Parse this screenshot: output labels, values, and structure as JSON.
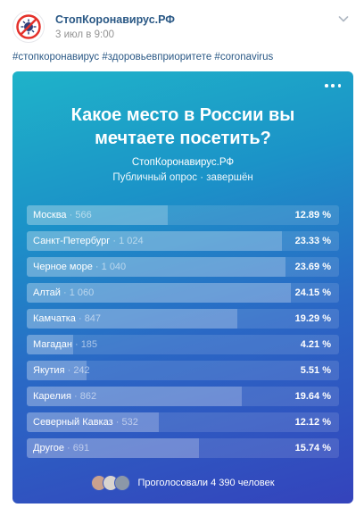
{
  "post": {
    "author_name": "СтопКоронавирус.РФ",
    "date": "3 июл в 9:00",
    "hashtags": "#стопкоронавирус #здоровьевприоритете #coronavirus"
  },
  "poll": {
    "question": "Какое место в России вы мечтаете посетить?",
    "author": "СтопКоронавирус.РФ",
    "meta": "Публичный опрос · завершён",
    "options": [
      {
        "label": "Москва",
        "count": "566",
        "percent": "12.89 %",
        "share": 0.1289
      },
      {
        "label": "Санкт-Петербург",
        "count": "1 024",
        "percent": "23.33 %",
        "share": 0.2333
      },
      {
        "label": "Черное море",
        "count": "1 040",
        "percent": "23.69 %",
        "share": 0.2369
      },
      {
        "label": "Алтай",
        "count": "1 060",
        "percent": "24.15 %",
        "share": 0.2415
      },
      {
        "label": "Камчатка",
        "count": "847",
        "percent": "19.29 %",
        "share": 0.1929
      },
      {
        "label": "Магадан",
        "count": "185",
        "percent": "4.21 %",
        "share": 0.0421
      },
      {
        "label": "Якутия",
        "count": "242",
        "percent": "5.51 %",
        "share": 0.0551
      },
      {
        "label": "Карелия",
        "count": "862",
        "percent": "19.64 %",
        "share": 0.1964
      },
      {
        "label": "Северный Кавказ",
        "count": "532",
        "percent": "12.12 %",
        "share": 0.1212
      },
      {
        "label": "Другое",
        "count": "691",
        "percent": "15.74 %",
        "share": 0.1574
      }
    ],
    "voters_text": "Проголосовали 4 390 человек",
    "voter_avatar_colors": [
      "#c9a18e",
      "#d9d4cf",
      "#8c98a8"
    ]
  },
  "colors": {
    "link": "#2a5885",
    "poll_gradient_start": "#1fb3c9",
    "poll_gradient_end": "#3443bc",
    "logo_red": "#e4312b"
  },
  "icons": {
    "avatar": "coronavirus-stop-logo",
    "menu": "more-horizontal-icon",
    "chevron": "chevron-down-icon"
  }
}
